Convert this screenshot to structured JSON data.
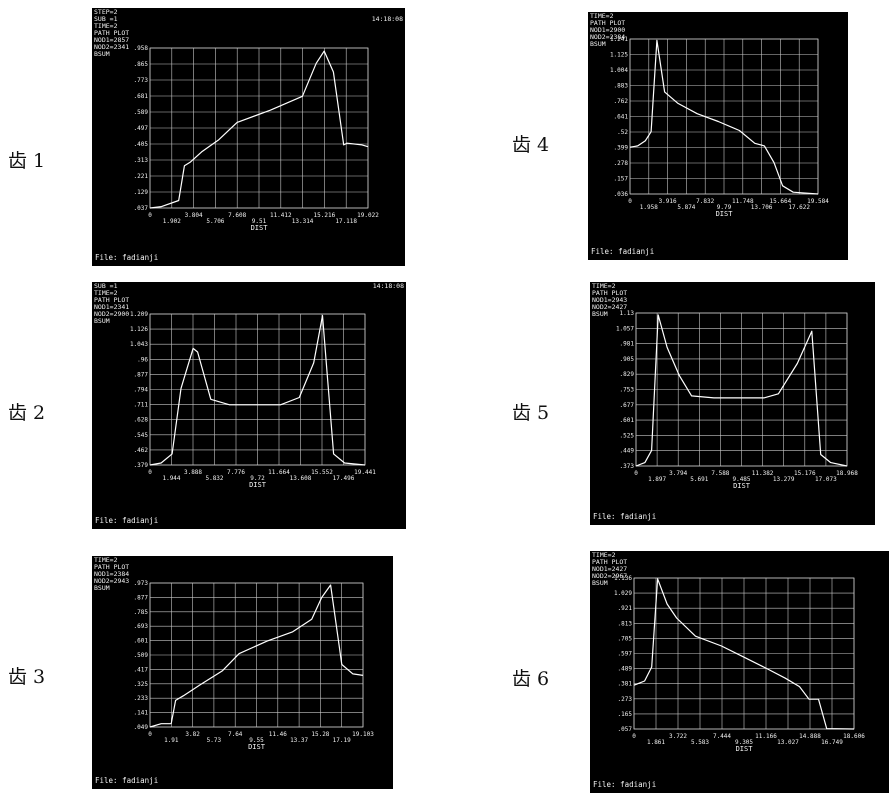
{
  "colors": {
    "panel_bg": "#000000",
    "grid": "#c8c8c8",
    "curve": "#ffffff",
    "text": "#f2f2f2"
  },
  "chart_data": [
    {
      "type": "line",
      "caption": "齿 1",
      "header": [
        "STEP=2",
        "SUB =1",
        "TIME=2",
        "PATH PLOT",
        "NOD1=2857",
        "NOD2=2341",
        "BSUM"
      ],
      "header_right": [
        "",
        "14:18:08"
      ],
      "yticks": [
        ".037",
        ".129",
        ".221",
        ".313",
        ".405",
        ".497",
        ".589",
        ".681",
        ".773",
        ".865",
        ".958"
      ],
      "xticks_top": [
        "0",
        "3.804",
        "7.608",
        "11.412",
        "15.216",
        "19.022"
      ],
      "xticks_bottom": [
        "1.902",
        "5.706",
        "9.51",
        "13.314",
        "17.118"
      ],
      "xlabel": "DIST",
      "footer": "File: fadianji",
      "xlim": [
        0,
        19.022
      ],
      "ylim": [
        0.037,
        0.958
      ],
      "x": [
        0,
        1.0,
        2.5,
        3.0,
        3.5,
        4.5,
        6.0,
        7.6,
        10.5,
        13.3,
        14.5,
        15.2,
        16.0,
        16.9,
        17.2,
        18.5,
        19.022
      ],
      "y": [
        0.037,
        0.045,
        0.08,
        0.28,
        0.3,
        0.36,
        0.43,
        0.53,
        0.6,
        0.68,
        0.87,
        0.94,
        0.82,
        0.4,
        0.41,
        0.4,
        0.39
      ]
    },
    {
      "type": "line",
      "caption": "齿 2",
      "header": [
        "SUB =1",
        "TIME=2",
        "PATH PLOT",
        "NOD1=2341",
        "NOD2=2900",
        "BSUM"
      ],
      "header_right": [
        "14:18:08"
      ],
      "yticks": [
        ".379",
        ".462",
        ".545",
        ".628",
        ".711",
        ".794",
        ".877",
        ".96",
        "1.043",
        "1.126",
        "1.209"
      ],
      "xticks_top": [
        "0",
        "3.888",
        "7.776",
        "11.664",
        "15.552",
        "19.441"
      ],
      "xticks_bottom": [
        "1.944",
        "5.832",
        "9.72",
        "13.608",
        "17.496"
      ],
      "xlabel": "DIST",
      "footer": "File: fadianji",
      "xlim": [
        0,
        19.441
      ],
      "ylim": [
        0.379,
        1.209
      ],
      "x": [
        0,
        1.0,
        2.0,
        2.8,
        3.9,
        4.3,
        5.5,
        7.2,
        9.7,
        11.8,
        13.5,
        14.8,
        15.6,
        16.6,
        17.6,
        19.441
      ],
      "y": [
        0.379,
        0.39,
        0.44,
        0.8,
        1.02,
        1.0,
        0.74,
        0.71,
        0.71,
        0.71,
        0.75,
        0.94,
        1.2,
        0.44,
        0.39,
        0.379
      ]
    },
    {
      "type": "line",
      "caption": "齿 3",
      "header": [
        "TIME=2",
        "PATH PLOT",
        "NOD1=2384",
        "NOD2=2943",
        "BSUM"
      ],
      "header_right": [],
      "yticks": [
        ".049",
        ".141",
        ".233",
        ".325",
        ".417",
        ".509",
        ".601",
        ".693",
        ".785",
        ".877",
        ".973"
      ],
      "xticks_top": [
        "0",
        "3.82",
        "7.64",
        "11.46",
        "15.28",
        "19.103"
      ],
      "xticks_bottom": [
        "1.91",
        "5.73",
        "9.55",
        "13.37",
        "17.19"
      ],
      "xlabel": "DIST",
      "footer": "File: fadianji",
      "xlim": [
        0,
        19.103
      ],
      "ylim": [
        0.049,
        0.973
      ],
      "x": [
        0,
        1.0,
        1.9,
        2.3,
        3.0,
        4.5,
        6.5,
        8.0,
        10.5,
        12.8,
        14.5,
        15.4,
        16.2,
        17.2,
        18.2,
        19.103
      ],
      "y": [
        0.049,
        0.07,
        0.07,
        0.22,
        0.25,
        0.32,
        0.41,
        0.52,
        0.6,
        0.66,
        0.74,
        0.88,
        0.96,
        0.45,
        0.39,
        0.38
      ]
    },
    {
      "type": "line",
      "caption": "齿 4",
      "header": [
        "TIME=2",
        "PATH PLOT",
        "NOD1=2900",
        "NOD2=2384",
        "BSUM"
      ],
      "header_right": [],
      "yticks": [
        ".036",
        ".157",
        ".278",
        ".399",
        ".52",
        ".641",
        ".762",
        ".883",
        "1.004",
        "1.125",
        "1.241"
      ],
      "xticks_top": [
        "0",
        "3.916",
        "7.832",
        "11.748",
        "15.664",
        "19.584"
      ],
      "xticks_bottom": [
        "1.958",
        "5.874",
        "9.79",
        "13.706",
        "17.622"
      ],
      "xlabel": "DIST",
      "footer": "File: fadianji",
      "xlim": [
        0,
        19.584
      ],
      "ylim": [
        0.036,
        1.241
      ],
      "x": [
        0,
        0.8,
        1.6,
        2.2,
        2.8,
        3.6,
        5.0,
        7.0,
        9.2,
        11.4,
        13.0,
        14.0,
        15.0,
        15.9,
        17.0,
        19.584
      ],
      "y": [
        0.4,
        0.41,
        0.45,
        0.52,
        1.23,
        0.83,
        0.74,
        0.66,
        0.6,
        0.53,
        0.43,
        0.41,
        0.28,
        0.1,
        0.05,
        0.036
      ]
    },
    {
      "type": "line",
      "caption": "齿 5",
      "header": [
        "TIME=2",
        "PATH PLOT",
        "NOD1=2943",
        "NOD2=2427",
        "BSUM"
      ],
      "header_right": [],
      "yticks": [
        ".373",
        ".449",
        ".525",
        ".601",
        ".677",
        ".753",
        ".829",
        ".905",
        ".981",
        "1.057",
        "1.13"
      ],
      "xticks_top": [
        "0",
        "3.794",
        "7.588",
        "11.382",
        "15.176",
        "18.968"
      ],
      "xticks_bottom": [
        "1.897",
        "5.691",
        "9.485",
        "13.279",
        "17.073"
      ],
      "xlabel": "DIST",
      "footer": "File: fadianji",
      "xlim": [
        0,
        18.968
      ],
      "ylim": [
        0.373,
        1.13
      ],
      "x": [
        0,
        0.8,
        1.4,
        2.0,
        2.8,
        3.9,
        5.0,
        7.0,
        9.5,
        11.5,
        12.8,
        14.5,
        15.8,
        16.6,
        17.5,
        18.968
      ],
      "y": [
        0.373,
        0.39,
        0.45,
        1.12,
        0.96,
        0.82,
        0.72,
        0.71,
        0.71,
        0.71,
        0.73,
        0.88,
        1.04,
        0.43,
        0.39,
        0.373
      ]
    },
    {
      "type": "line",
      "caption": "齿 6",
      "header": [
        "TIME=2",
        "PATH PLOT",
        "NOD1=2427",
        "NOD2=2967",
        "BSUM"
      ],
      "header_right": [],
      "yticks": [
        ".057",
        ".165",
        ".273",
        ".381",
        ".489",
        ".597",
        ".705",
        ".813",
        ".921",
        "1.029",
        "1.136"
      ],
      "xticks_top": [
        "0",
        "3.722",
        "7.444",
        "11.166",
        "14.888",
        "18.606"
      ],
      "xticks_bottom": [
        "1.861",
        "5.583",
        "9.305",
        "13.027",
        "16.749"
      ],
      "xlabel": "DIST",
      "footer": "File: fadianji",
      "xlim": [
        0,
        18.606
      ],
      "ylim": [
        0.057,
        1.136
      ],
      "x": [
        0,
        0.9,
        1.5,
        2.0,
        2.8,
        3.6,
        5.2,
        7.4,
        9.3,
        11.2,
        12.8,
        14.0,
        14.8,
        15.6,
        16.3,
        18.606
      ],
      "y": [
        0.37,
        0.4,
        0.5,
        1.13,
        0.95,
        0.85,
        0.72,
        0.65,
        0.57,
        0.49,
        0.42,
        0.36,
        0.27,
        0.27,
        0.06,
        0.057
      ]
    }
  ]
}
